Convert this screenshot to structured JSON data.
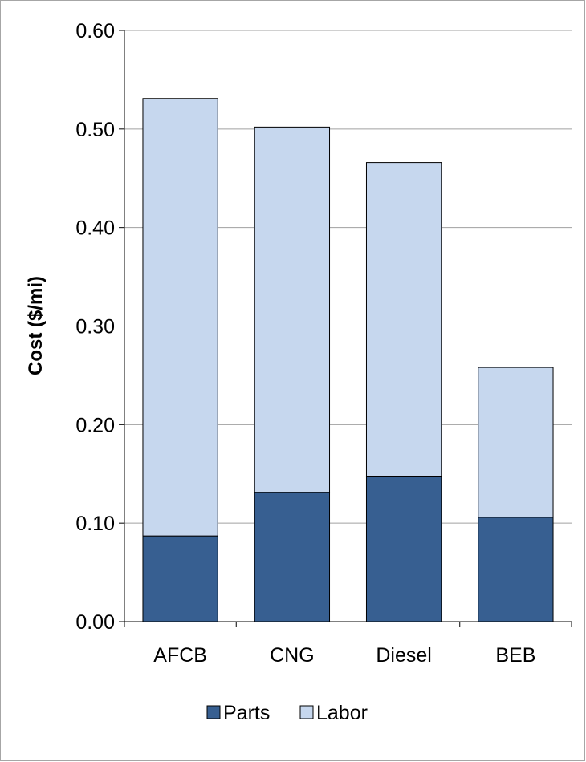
{
  "chart_data": {
    "type": "bar",
    "stacked": true,
    "title": "",
    "xlabel": "",
    "ylabel": "Cost  ($/mi)",
    "ylim": [
      0,
      0.6
    ],
    "y_ticks": [
      "0.00",
      "0.10",
      "0.20",
      "0.30",
      "0.40",
      "0.50",
      "0.60"
    ],
    "grid": true,
    "legend_position": "bottom",
    "categories": [
      "AFCB",
      "CNG",
      "Diesel",
      "BEB"
    ],
    "series": [
      {
        "name": "Parts",
        "color": "#375f91",
        "values": [
          0.087,
          0.131,
          0.147,
          0.106
        ]
      },
      {
        "name": "Labor",
        "color": "#c6d7ee",
        "values": [
          0.444,
          0.371,
          0.319,
          0.152
        ]
      }
    ]
  }
}
